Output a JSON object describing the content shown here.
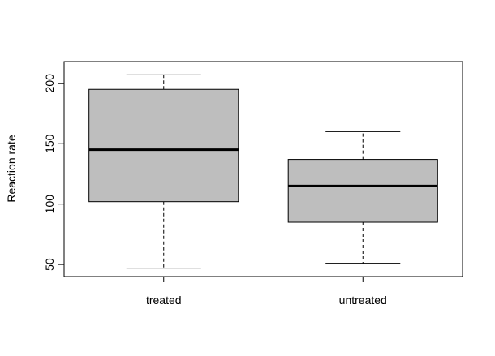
{
  "chart_data": {
    "type": "box",
    "title": "",
    "xlabel": "",
    "ylabel": "Reaction rate",
    "ylim": [
      40,
      218
    ],
    "yticks": [
      50,
      100,
      150,
      200
    ],
    "grid": false,
    "colors": {
      "box_fill": "#bebebe",
      "stroke": "#000000"
    },
    "categories": [
      "treated",
      "untreated"
    ],
    "boxes": [
      {
        "category": "treated",
        "whisker_low": 47,
        "q1": 102,
        "median": 145,
        "q3": 195,
        "whisker_high": 207
      },
      {
        "category": "untreated",
        "whisker_low": 51,
        "q1": 85,
        "median": 115,
        "q3": 137,
        "whisker_high": 160
      }
    ]
  }
}
